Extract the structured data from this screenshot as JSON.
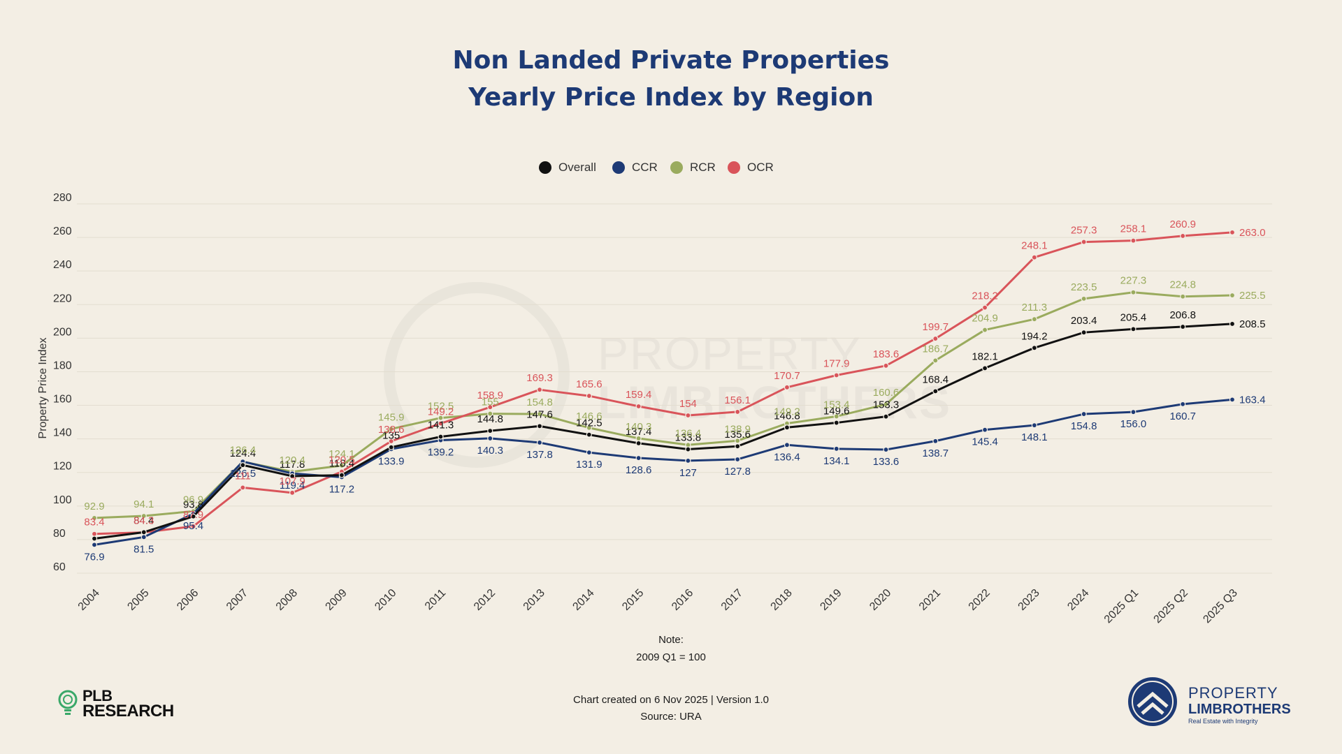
{
  "title_line1": "Non Landed Private Properties",
  "title_line2": "Yearly Price Index by Region",
  "note_label": "Note:",
  "note_text": "2009 Q1 = 100",
  "created": "Chart created on 6 Nov 2025 | Version 1.0",
  "source": "Source: URA",
  "logo_left": {
    "line1": "PLB",
    "line2": "RESEARCH"
  },
  "logo_right": {
    "line1": "PROPERTY",
    "line2": "LIMBROTHERS",
    "tagline": "Real Estate with Integrity"
  },
  "watermark": {
    "line1": "PROPERTY",
    "line2": "LIMBROTHERS"
  },
  "chart_data": {
    "type": "line",
    "ylabel": "Property Price Index",
    "ylim": [
      60,
      280
    ],
    "yticks": [
      60,
      80,
      100,
      120,
      140,
      160,
      180,
      200,
      220,
      240,
      260,
      280
    ],
    "grid": true,
    "legend_position": "top-center",
    "categories": [
      "2004",
      "2005",
      "2006",
      "2007",
      "2008",
      "2009",
      "2010",
      "2011",
      "2012",
      "2013",
      "2014",
      "2015",
      "2016",
      "2017",
      "2018",
      "2019",
      "2020",
      "2021",
      "2022",
      "2023",
      "2024",
      "2025 Q1",
      "2025 Q2",
      "2025 Q3"
    ],
    "series": [
      {
        "name": "Overall",
        "color": "#111111",
        "values": [
          80.6,
          84.4,
          93.8,
          124.4,
          117.8,
          118.4,
          135,
          141.3,
          144.8,
          147.6,
          142.5,
          137.4,
          133.8,
          135.6,
          146.8,
          149.6,
          153.3,
          168.4,
          182.1,
          194.2,
          203.4,
          205.4,
          206.8,
          208.5
        ],
        "labels": [
          "",
          "84.4",
          "93.8",
          "124.4",
          "117.8",
          "118.4",
          "135",
          "141.3",
          "144.8",
          "147.6",
          "142.5",
          "137.4",
          "133.8",
          "135.6",
          "146.8",
          "149.6",
          "153.3",
          "168.4",
          "182.1",
          "194.2",
          "203.4",
          "205.4",
          "206.8",
          "208.5"
        ]
      },
      {
        "name": "CCR",
        "color": "#1d3a75",
        "values": [
          76.9,
          81.5,
          95.4,
          126.5,
          119.4,
          117.2,
          133.9,
          139.2,
          140.3,
          137.8,
          131.9,
          128.6,
          127,
          127.8,
          136.4,
          134.1,
          133.6,
          138.7,
          145.4,
          148.1,
          154.8,
          156.0,
          160.7,
          163.4
        ],
        "labels": [
          "76.9",
          "81.5",
          "95.4",
          "126.5",
          "119.4",
          "117.2",
          "133.9",
          "139.2",
          "140.3",
          "137.8",
          "131.9",
          "128.6",
          "127",
          "127.8",
          "136.4",
          "134.1",
          "133.6",
          "138.7",
          "145.4",
          "148.1",
          "154.8",
          "156.0",
          "160.7",
          "163.4"
        ]
      },
      {
        "name": "RCR",
        "color": "#9aab5e",
        "values": [
          92.9,
          94.1,
          96.9,
          126.4,
          120.4,
          124.1,
          145.9,
          152.5,
          155,
          154.8,
          146.6,
          140.3,
          136.4,
          138.9,
          149.2,
          153.4,
          160.6,
          186.7,
          204.9,
          211.3,
          223.5,
          227.3,
          224.8,
          225.5
        ],
        "labels": [
          "92.9",
          "94.1",
          "96.9",
          "126.4",
          "120.4",
          "124.1",
          "145.9",
          "152.5",
          "155",
          "154.8",
          "146.6",
          "140.3",
          "136.4",
          "138.9",
          "149.2",
          "153.4",
          "160.6",
          "186.7",
          "204.9",
          "211.3",
          "223.5",
          "227.3",
          "224.8",
          "225.5"
        ]
      },
      {
        "name": "OCR",
        "color": "#d9545a",
        "values": [
          83.4,
          84.3,
          87.9,
          111,
          107.9,
          120.5,
          138.6,
          149.2,
          158.9,
          169.3,
          165.6,
          159.4,
          154,
          156.1,
          170.7,
          177.9,
          183.6,
          199.7,
          218.2,
          248.1,
          257.3,
          258.1,
          260.9,
          263.0
        ],
        "labels": [
          "83.4",
          "84.3",
          "87.9",
          "111",
          "107.9",
          "120.5",
          "138.6",
          "149.2",
          "158.9",
          "169.3",
          "165.6",
          "159.4",
          "154",
          "156.1",
          "170.7",
          "177.9",
          "183.6",
          "199.7",
          "218.2",
          "248.1",
          "257.3",
          "258.1",
          "260.9",
          "263.0"
        ]
      }
    ]
  }
}
